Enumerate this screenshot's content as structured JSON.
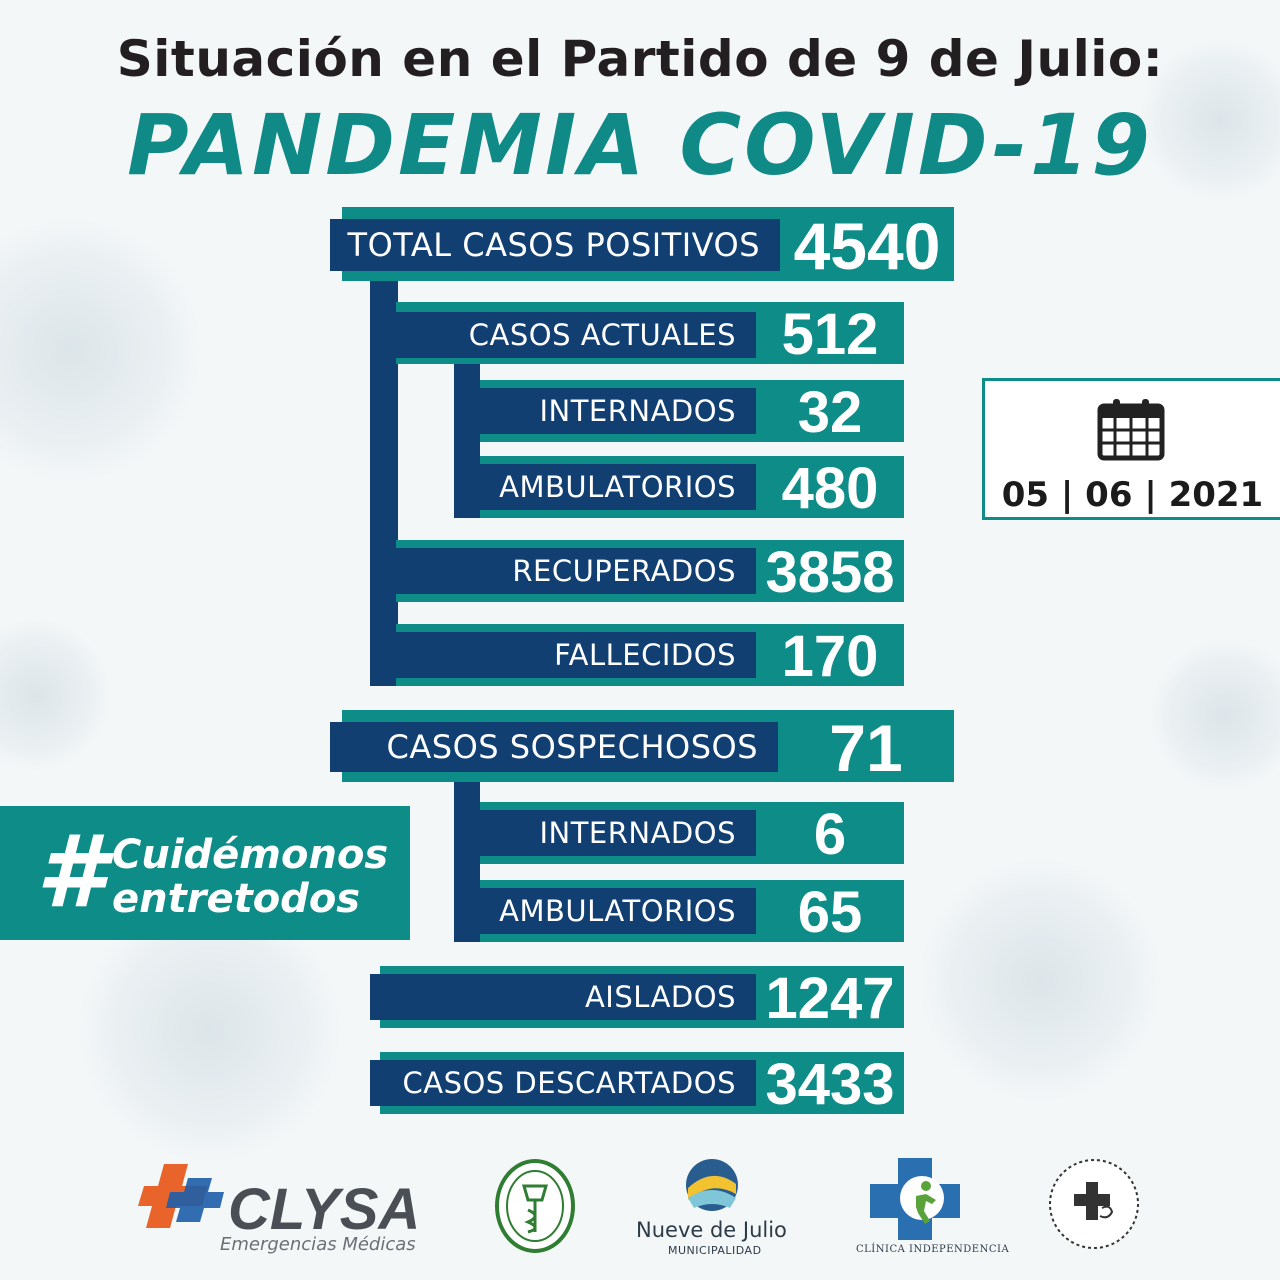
{
  "header": {
    "title": "Situación en el Partido de 9 de Julio:",
    "subtitle": "PANDEMIA COVID-19"
  },
  "stats": {
    "total": {
      "label": "TOTAL CASOS POSITIVOS",
      "value": "4540"
    },
    "actuales": {
      "label": "CASOS ACTUALES",
      "value": "512"
    },
    "internados": {
      "label": "INTERNADOS",
      "value": "32"
    },
    "ambulatorios": {
      "label": "AMBULATORIOS",
      "value": "480"
    },
    "recuperados": {
      "label": "RECUPERADOS",
      "value": "3858"
    },
    "fallecidos": {
      "label": "FALLECIDOS",
      "value": "170"
    },
    "sospechosos": {
      "label": "CASOS SOSPECHOSOS",
      "value": "71"
    },
    "sosp_internados": {
      "label": "INTERNADOS",
      "value": "6"
    },
    "sosp_ambulatorios": {
      "label": "AMBULATORIOS",
      "value": "65"
    },
    "aislados": {
      "label": "AISLADOS",
      "value": "1247"
    },
    "descartados": {
      "label": "CASOS DESCARTADOS",
      "value": "3433"
    }
  },
  "date": {
    "text": "05 | 06 | 2021",
    "icon": "calendar-icon"
  },
  "hashtag": {
    "symbol": "#",
    "line1": "Cuidémonos",
    "line2": "entretodos"
  },
  "logos": {
    "clysa": "CLYSA",
    "clysa_sub": "Emergencias Médicas",
    "nueve": "Nueve de Julio",
    "nueve_sub": "MUNICIPALIDAD",
    "clinica": "CLÍNICA INDEPENDENCIA"
  },
  "colors": {
    "teal": "#0e8c88",
    "navy": "#123f72",
    "orange": "#e8642a"
  }
}
